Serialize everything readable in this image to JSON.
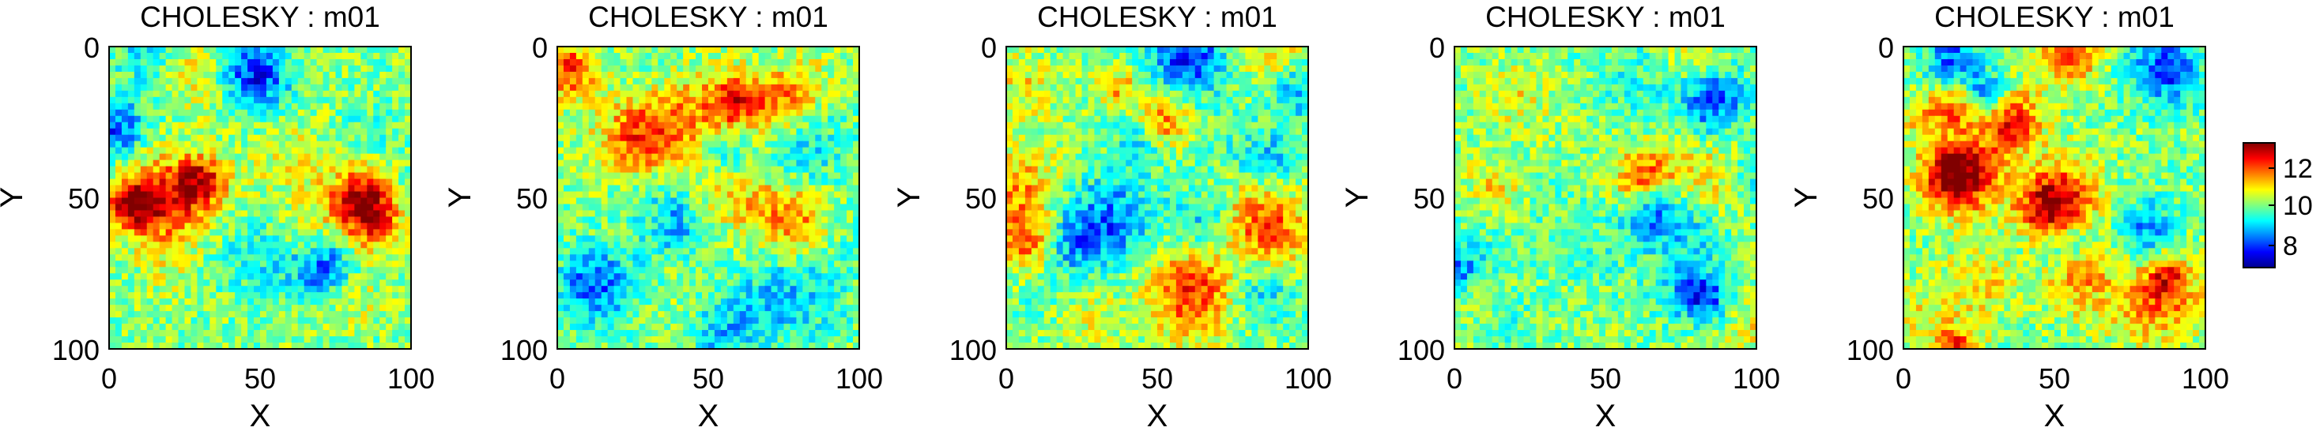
{
  "chart_data": {
    "type": "heatmap",
    "colormap": "jet",
    "grid": false,
    "panels": [
      {
        "title": "CHOLESKY : m01",
        "xlabel": "X",
        "ylabel": "Y",
        "xlim": [
          0,
          100
        ],
        "ylim": [
          0,
          100
        ],
        "xticks": [
          "0",
          "50",
          "100"
        ],
        "yticks": [
          "0",
          "50",
          "100"
        ]
      },
      {
        "title": "CHOLESKY : m01",
        "xlabel": "X",
        "ylabel": "Y",
        "xlim": [
          0,
          100
        ],
        "ylim": [
          0,
          100
        ],
        "xticks": [
          "0",
          "50",
          "100"
        ],
        "yticks": [
          "0",
          "50",
          "100"
        ]
      },
      {
        "title": "CHOLESKY : m01",
        "xlabel": "X",
        "ylabel": "Y",
        "xlim": [
          0,
          100
        ],
        "ylim": [
          0,
          100
        ],
        "xticks": [
          "0",
          "50",
          "100"
        ],
        "yticks": [
          "0",
          "50",
          "100"
        ]
      },
      {
        "title": "CHOLESKY : m01",
        "xlabel": "X",
        "ylabel": "Y",
        "xlim": [
          0,
          100
        ],
        "ylim": [
          0,
          100
        ],
        "xticks": [
          "0",
          "50",
          "100"
        ],
        "yticks": [
          "0",
          "50",
          "100"
        ]
      },
      {
        "title": "CHOLESKY : m01",
        "xlabel": "X",
        "ylabel": "Y",
        "xlim": [
          0,
          100
        ],
        "ylim": [
          0,
          100
        ],
        "xticks": [
          "0",
          "50",
          "100"
        ],
        "yticks": [
          "0",
          "50",
          "100"
        ]
      }
    ],
    "colorbar": {
      "range": [
        7,
        13
      ],
      "ticks": [
        "8",
        "10",
        "12"
      ]
    }
  }
}
